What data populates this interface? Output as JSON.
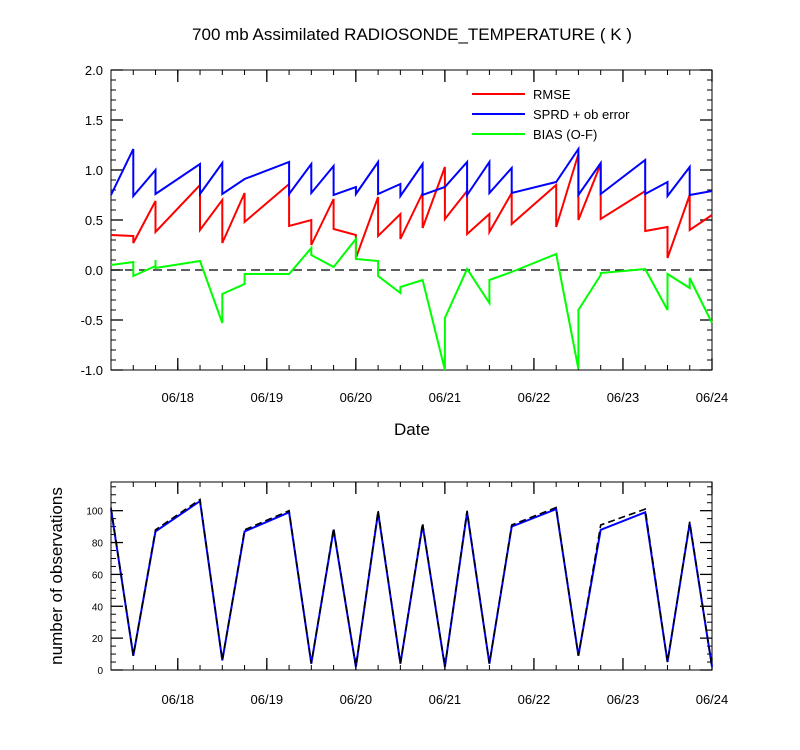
{
  "chart_data": [
    {
      "type": "line",
      "title": "700 mb Assimilated RADIOSONDE_TEMPERATURE ( K )",
      "xlabel": "Date",
      "ylabel": "",
      "x_ticks": [
        "06/18",
        "06/19",
        "06/20",
        "06/21",
        "06/22",
        "06/23",
        "06/24"
      ],
      "y_ticks": [
        "2.0",
        "1.5",
        "1.0",
        "0.5",
        "0.0",
        "-0.5",
        "-1.0"
      ],
      "ylim": [
        -1.0,
        2.0
      ],
      "reference_line": 0.0,
      "legend_position": "top-right",
      "series": [
        {
          "name": "RMSE",
          "color": "#ff0000",
          "points": [
            [
              0,
              0.35
            ],
            [
              6,
              0.34
            ],
            [
              6,
              0.27
            ],
            [
              12,
              0.69
            ],
            [
              12,
              0.38
            ],
            [
              24,
              0.85
            ],
            [
              24,
              0.4
            ],
            [
              30,
              0.7
            ],
            [
              30,
              0.27
            ],
            [
              36,
              0.77
            ],
            [
              36,
              0.48
            ],
            [
              48,
              0.86
            ],
            [
              48,
              0.44
            ],
            [
              54,
              0.5
            ],
            [
              54,
              0.25
            ],
            [
              60,
              0.71
            ],
            [
              60,
              0.41
            ],
            [
              66,
              0.35
            ],
            [
              66,
              0.12
            ],
            [
              72,
              0.73
            ],
            [
              72,
              0.34
            ],
            [
              78,
              0.56
            ],
            [
              78,
              0.31
            ],
            [
              84,
              0.77
            ],
            [
              84,
              0.42
            ],
            [
              90,
              1.03
            ],
            [
              90,
              0.51
            ],
            [
              96,
              0.79
            ],
            [
              96,
              0.36
            ],
            [
              102,
              0.56
            ],
            [
              102,
              0.38
            ],
            [
              108,
              0.77
            ],
            [
              108,
              0.46
            ],
            [
              120,
              0.85
            ],
            [
              120,
              0.43
            ],
            [
              126,
              1.16
            ],
            [
              126,
              0.5
            ],
            [
              132,
              1.06
            ],
            [
              132,
              0.51
            ],
            [
              144,
              0.79
            ],
            [
              144,
              0.39
            ],
            [
              150,
              0.43
            ],
            [
              150,
              0.12
            ],
            [
              156,
              0.75
            ],
            [
              156,
              0.4
            ],
            [
              162,
              0.55
            ]
          ]
        },
        {
          "name": "SPRD + ob error",
          "color": "#0000ff",
          "points": [
            [
              0,
              0.75
            ],
            [
              6,
              1.21
            ],
            [
              6,
              0.74
            ],
            [
              12,
              1.0
            ],
            [
              12,
              0.76
            ],
            [
              24,
              1.06
            ],
            [
              24,
              0.76
            ],
            [
              30,
              1.07
            ],
            [
              30,
              0.76
            ],
            [
              36,
              0.91
            ],
            [
              48,
              1.08
            ],
            [
              48,
              0.76
            ],
            [
              54,
              1.06
            ],
            [
              54,
              0.77
            ],
            [
              60,
              1.04
            ],
            [
              60,
              0.75
            ],
            [
              66,
              0.83
            ],
            [
              66,
              0.76
            ],
            [
              72,
              1.08
            ],
            [
              72,
              0.76
            ],
            [
              78,
              0.86
            ],
            [
              78,
              0.74
            ],
            [
              84,
              1.06
            ],
            [
              84,
              0.75
            ],
            [
              90,
              0.83
            ],
            [
              96,
              1.08
            ],
            [
              96,
              0.75
            ],
            [
              102,
              1.08
            ],
            [
              102,
              0.77
            ],
            [
              108,
              1.02
            ],
            [
              108,
              0.77
            ],
            [
              120,
              0.88
            ],
            [
              126,
              1.21
            ],
            [
              126,
              0.75
            ],
            [
              132,
              1.07
            ],
            [
              132,
              0.76
            ],
            [
              144,
              1.1
            ],
            [
              144,
              0.76
            ],
            [
              150,
              0.88
            ],
            [
              150,
              0.74
            ],
            [
              156,
              1.03
            ],
            [
              156,
              0.75
            ],
            [
              162,
              0.79
            ]
          ]
        },
        {
          "name": "BIAS (O-F)",
          "color": "#00ff00",
          "points": [
            [
              0,
              0.05
            ],
            [
              6,
              0.08
            ],
            [
              6,
              -0.06
            ],
            [
              12,
              0.04
            ],
            [
              12,
              0.1
            ],
            [
              12,
              0.02
            ],
            [
              24,
              0.09
            ],
            [
              30,
              -0.53
            ],
            [
              30,
              -0.24
            ],
            [
              36,
              -0.14
            ],
            [
              36,
              -0.04
            ],
            [
              48,
              -0.04
            ],
            [
              54,
              0.22
            ],
            [
              54,
              0.15
            ],
            [
              60,
              0.03
            ],
            [
              66,
              0.31
            ],
            [
              66,
              0.11
            ],
            [
              72,
              0.09
            ],
            [
              72,
              -0.06
            ],
            [
              78,
              -0.23
            ],
            [
              78,
              -0.17
            ],
            [
              84,
              -0.1
            ],
            [
              90,
              -1.0
            ],
            [
              90,
              -0.48
            ],
            [
              96,
              0.01
            ],
            [
              102,
              -0.33
            ],
            [
              102,
              -0.1
            ],
            [
              108,
              -0.02
            ],
            [
              120,
              0.16
            ],
            [
              126,
              -0.99
            ],
            [
              126,
              -0.4
            ],
            [
              132,
              -0.05
            ],
            [
              132,
              -0.03
            ],
            [
              144,
              0.01
            ],
            [
              150,
              -0.4
            ],
            [
              150,
              -0.04
            ],
            [
              156,
              -0.18
            ],
            [
              156,
              -0.08
            ],
            [
              162,
              -0.53
            ]
          ]
        }
      ]
    },
    {
      "type": "line",
      "title": "",
      "xlabel": "",
      "ylabel": "number of observations",
      "x_ticks": [
        "06/18",
        "06/19",
        "06/20",
        "06/21",
        "06/22",
        "06/23",
        "06/24"
      ],
      "y_ticks": [
        "100",
        "80",
        "60",
        "40",
        "20",
        "0"
      ],
      "ylim": [
        0,
        118
      ],
      "series": [
        {
          "color": "#0000ff",
          "points": [
            [
              0,
              101
            ],
            [
              6,
              9
            ],
            [
              12,
              87
            ],
            [
              24,
              106
            ],
            [
              30,
              6
            ],
            [
              36,
              87
            ],
            [
              48,
              99
            ],
            [
              54,
              4
            ],
            [
              60,
              88
            ],
            [
              66,
              2
            ],
            [
              72,
              99
            ],
            [
              78,
              4
            ],
            [
              84,
              91
            ],
            [
              90,
              2
            ],
            [
              96,
              99
            ],
            [
              102,
              4
            ],
            [
              108,
              90
            ],
            [
              120,
              101
            ],
            [
              126,
              9
            ],
            [
              132,
              88
            ],
            [
              144,
              99
            ],
            [
              150,
              5
            ],
            [
              156,
              92
            ],
            [
              162,
              2
            ]
          ]
        },
        {
          "color": "#000000",
          "dashed": true,
          "points": [
            [
              0,
              102
            ],
            [
              6,
              9
            ],
            [
              12,
              88
            ],
            [
              24,
              107
            ],
            [
              30,
              6
            ],
            [
              36,
              88
            ],
            [
              48,
              100
            ],
            [
              54,
              4
            ],
            [
              60,
              89
            ],
            [
              66,
              2
            ],
            [
              72,
              100
            ],
            [
              78,
              4
            ],
            [
              84,
              92
            ],
            [
              90,
              2
            ],
            [
              96,
              100
            ],
            [
              102,
              4
            ],
            [
              108,
              91
            ],
            [
              120,
              102
            ],
            [
              126,
              9
            ],
            [
              132,
              91
            ],
            [
              144,
              101
            ],
            [
              150,
              5
            ],
            [
              156,
              93
            ],
            [
              162,
              2
            ]
          ]
        }
      ]
    }
  ]
}
